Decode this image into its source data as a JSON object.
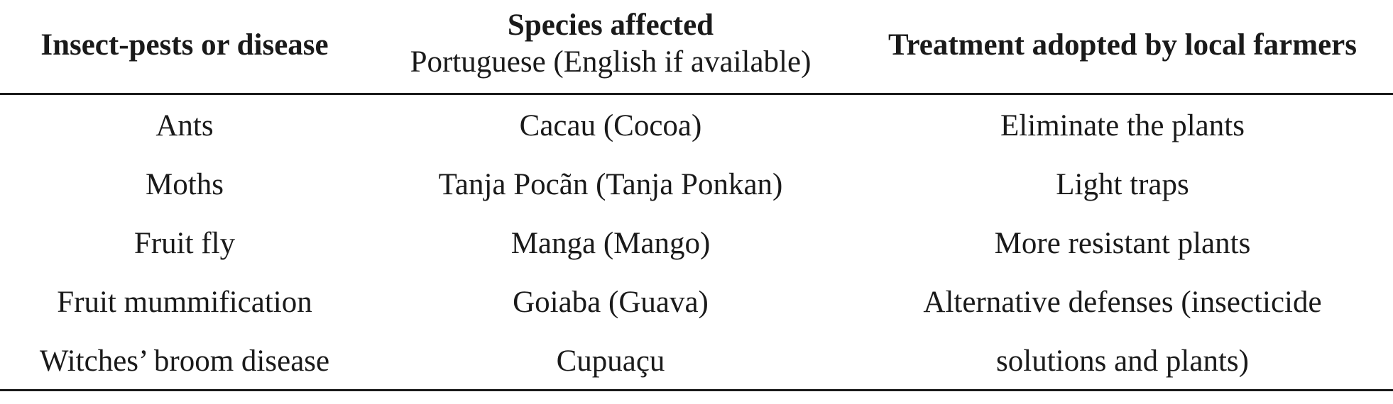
{
  "table": {
    "headers": {
      "col1": "Insect-pests or disease",
      "col2_title": "Species affected",
      "col2_sub": "Portuguese (English if available)",
      "col3": "Treatment adopted by local farmers"
    },
    "col1": [
      "Ants",
      "Moths",
      "Fruit fly",
      "Fruit mummification",
      "Witches’ broom disease"
    ],
    "col2": [
      "Cacau (Cocoa)",
      "Tanja Pocãn (Tanja Ponkan)",
      "Manga (Mango)",
      "Goiaba (Guava)",
      "Cupuaçu"
    ],
    "col3": [
      "Eliminate the plants",
      "Light traps",
      "More resistant plants",
      "Alternative defenses (insecticide",
      "solutions and plants)"
    ]
  }
}
